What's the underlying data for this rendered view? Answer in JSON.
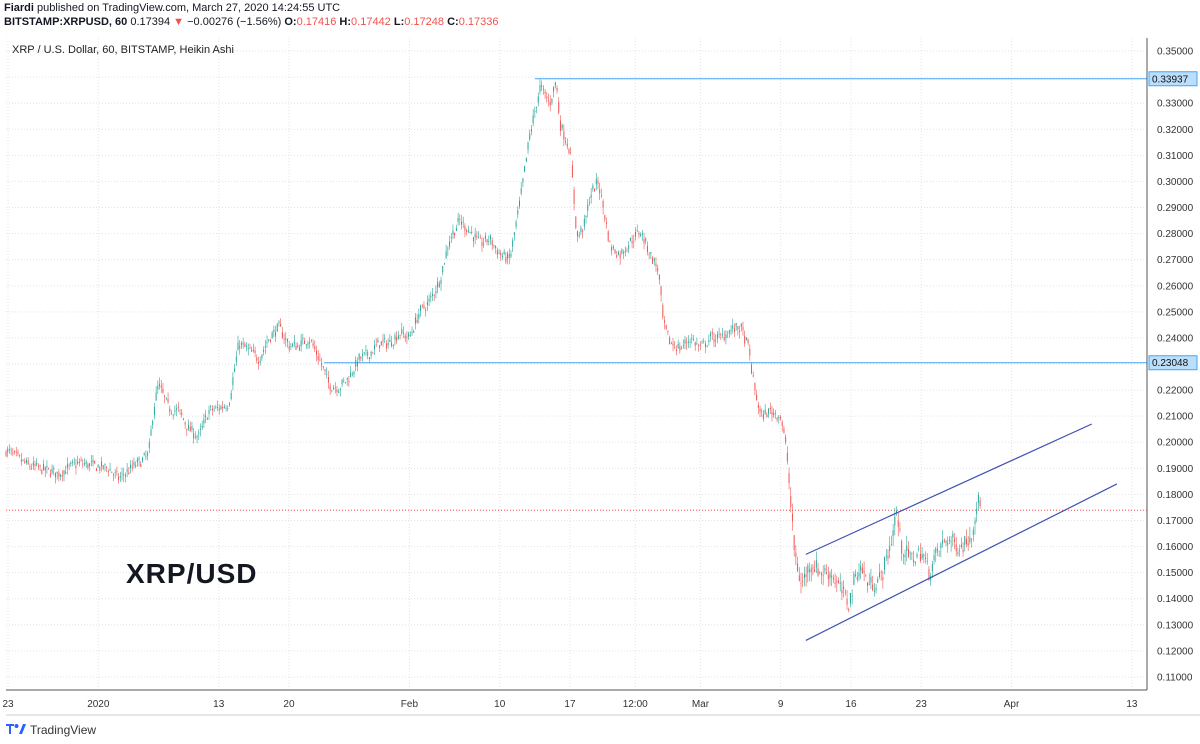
{
  "header": {
    "publisher": "Fiardi",
    "published_text": "published on TradingView.com, March 27, 2020 14:24:55 UTC",
    "symbol": "BITSTAMP:XRPUSD, 60",
    "last": "0.17394",
    "change": "−0.00276 (−1.56%)",
    "o_label": "O:",
    "o": "0.17416",
    "h_label": "H:",
    "h": "0.17442",
    "l_label": "L:",
    "l": "0.17248",
    "c_label": "C:",
    "c": "0.17336"
  },
  "pane_title": "XRP / U.S. Dollar, 60, BITSTAMP, Heikin Ashi",
  "big_label": "XRP/USD",
  "branding": "TradingView",
  "colors": {
    "up": "#26a69a",
    "down": "#ef5350",
    "hline": "#42a5f5",
    "channel": "#3f51b5",
    "price_line": "#ef5350",
    "grid": "#e0e3eb"
  },
  "chart_data": {
    "type": "line",
    "chart_style": "Heikin Ashi candlestick",
    "ylim": [
      0.105,
      0.355
    ],
    "y_ticks": [
      "0.11000",
      "0.12000",
      "0.13000",
      "0.14000",
      "0.15000",
      "0.16000",
      "0.17000",
      "0.18000",
      "0.19000",
      "0.20000",
      "0.21000",
      "0.22000",
      "0.23000",
      "0.24000",
      "0.25000",
      "0.26000",
      "0.27000",
      "0.28000",
      "0.29000",
      "0.30000",
      "0.31000",
      "0.32000",
      "0.33000",
      "0.34000",
      "0.35000"
    ],
    "x_ticks": [
      {
        "label": "23",
        "t": -9
      },
      {
        "label": "2020",
        "t": 0
      },
      {
        "label": "13",
        "t": 12
      },
      {
        "label": "20",
        "t": 19
      },
      {
        "label": "Feb",
        "t": 31
      },
      {
        "label": "10",
        "t": 40
      },
      {
        "label": "17",
        "t": 47
      },
      {
        "label": "12:00",
        "t": 53.5
      },
      {
        "label": "Mar",
        "t": 60
      },
      {
        "label": "9",
        "t": 68
      },
      {
        "label": "16",
        "t": 75
      },
      {
        "label": "23",
        "t": 82
      },
      {
        "label": "Apr",
        "t": 91
      },
      {
        "label": "13",
        "t": 103
      }
    ],
    "xlim": [
      -9.2,
      104.5
    ],
    "price_path": [
      [
        -9.2,
        0.197
      ],
      [
        -7,
        0.191
      ],
      [
        -4,
        0.188
      ],
      [
        -2,
        0.192
      ],
      [
        1,
        0.19
      ],
      [
        2,
        0.186
      ],
      [
        4,
        0.192
      ],
      [
        5,
        0.195
      ],
      [
        5.5,
        0.213
      ],
      [
        6,
        0.222
      ],
      [
        7,
        0.213
      ],
      [
        8,
        0.212
      ],
      [
        9,
        0.205
      ],
      [
        10,
        0.202
      ],
      [
        11,
        0.212
      ],
      [
        12,
        0.213
      ],
      [
        13,
        0.215
      ],
      [
        14,
        0.238
      ],
      [
        15,
        0.235
      ],
      [
        16,
        0.232
      ],
      [
        17,
        0.24
      ],
      [
        18,
        0.244
      ],
      [
        19,
        0.237
      ],
      [
        20,
        0.237
      ],
      [
        21,
        0.24
      ],
      [
        22,
        0.232
      ],
      [
        23,
        0.222
      ],
      [
        24,
        0.221
      ],
      [
        25,
        0.225
      ],
      [
        26,
        0.232
      ],
      [
        27,
        0.234
      ],
      [
        28,
        0.238
      ],
      [
        29,
        0.238
      ],
      [
        30,
        0.242
      ],
      [
        31,
        0.24
      ],
      [
        32,
        0.25
      ],
      [
        33,
        0.254
      ],
      [
        34,
        0.262
      ],
      [
        35,
        0.278
      ],
      [
        36,
        0.285
      ],
      [
        37,
        0.281
      ],
      [
        38,
        0.276
      ],
      [
        39,
        0.278
      ],
      [
        40,
        0.272
      ],
      [
        41,
        0.27
      ],
      [
        42,
        0.292
      ],
      [
        43,
        0.318
      ],
      [
        44,
        0.336
      ],
      [
        45,
        0.33
      ],
      [
        45.6,
        0.339
      ],
      [
        46,
        0.322
      ],
      [
        47,
        0.312
      ],
      [
        47.7,
        0.278
      ],
      [
        48.5,
        0.284
      ],
      [
        49,
        0.295
      ],
      [
        49.8,
        0.3
      ],
      [
        50.5,
        0.286
      ],
      [
        51,
        0.275
      ],
      [
        52,
        0.272
      ],
      [
        53,
        0.277
      ],
      [
        54,
        0.281
      ],
      [
        55,
        0.272
      ],
      [
        55.8,
        0.266
      ],
      [
        56.3,
        0.245
      ],
      [
        57,
        0.238
      ],
      [
        58,
        0.236
      ],
      [
        59,
        0.24
      ],
      [
        60,
        0.236
      ],
      [
        61,
        0.24
      ],
      [
        62,
        0.24
      ],
      [
        63,
        0.243
      ],
      [
        64,
        0.244
      ],
      [
        64.8,
        0.236
      ],
      [
        65.3,
        0.222
      ],
      [
        66,
        0.21
      ],
      [
        67,
        0.212
      ],
      [
        68,
        0.21
      ],
      [
        68.6,
        0.196
      ],
      [
        69.3,
        0.16
      ],
      [
        70,
        0.145
      ],
      [
        71,
        0.154
      ],
      [
        72,
        0.15
      ],
      [
        73,
        0.15
      ],
      [
        74,
        0.143
      ],
      [
        74.8,
        0.138
      ],
      [
        75.5,
        0.15
      ],
      [
        76,
        0.152
      ],
      [
        76.8,
        0.145
      ],
      [
        78,
        0.148
      ],
      [
        79,
        0.162
      ],
      [
        79.5,
        0.174
      ],
      [
        80,
        0.16
      ],
      [
        81,
        0.155
      ],
      [
        82,
        0.158
      ],
      [
        82.8,
        0.15
      ],
      [
        83.5,
        0.157
      ],
      [
        84.5,
        0.163
      ],
      [
        86,
        0.16
      ],
      [
        87,
        0.165
      ],
      [
        87.6,
        0.178
      ],
      [
        88,
        0.174
      ]
    ],
    "annotations": {
      "hlines": [
        0.33937,
        0.23048
      ],
      "hline_labels": [
        "0.33937",
        "0.23048"
      ],
      "current_price": 0.17394,
      "channel_upper": [
        [
          70.5,
          0.157
        ],
        [
          99,
          0.207
        ]
      ],
      "channel_lower": [
        [
          70.5,
          0.124
        ],
        [
          101.5,
          0.184
        ]
      ]
    }
  }
}
